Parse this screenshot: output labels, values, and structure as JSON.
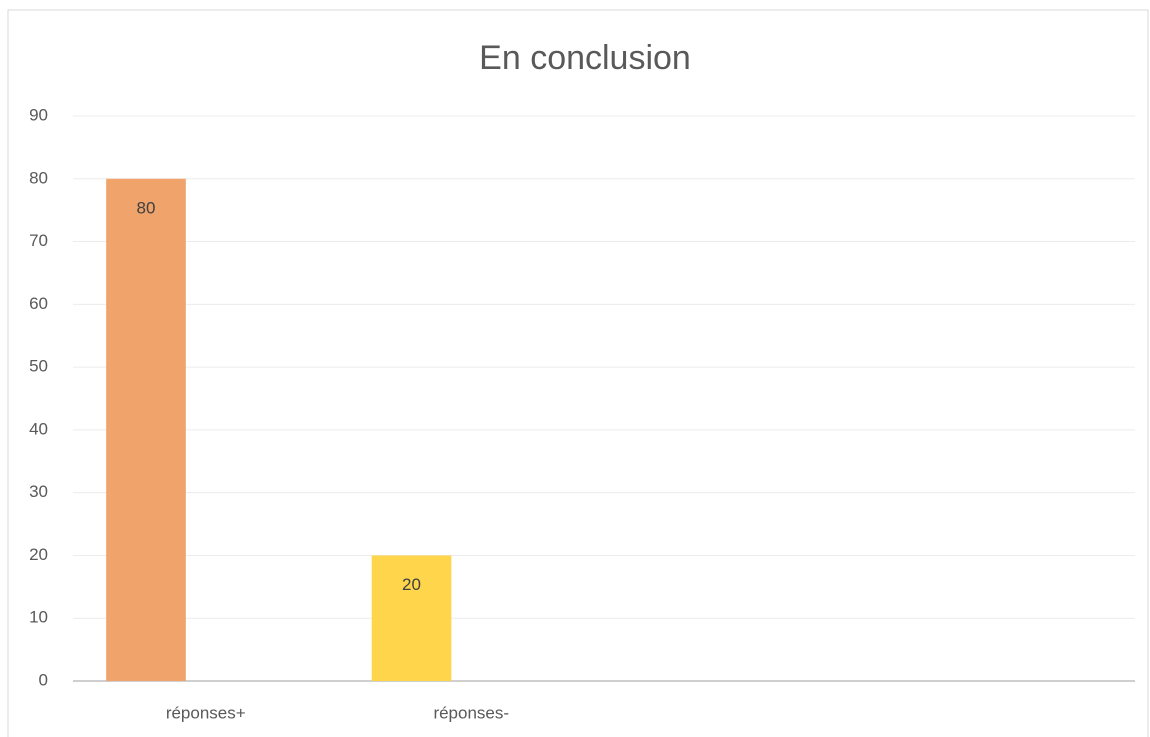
{
  "chart_data": {
    "type": "bar",
    "title": "En conclusion",
    "categories": [
      "réponses+",
      "réponses-",
      null,
      null
    ],
    "values": [
      80,
      20,
      null,
      null
    ],
    "colors": [
      "#f0a36b",
      "#ffd54c",
      null,
      null
    ],
    "ylim": [
      0,
      90
    ],
    "yticks": [
      0,
      10,
      20,
      30,
      40,
      50,
      60,
      70,
      80,
      90
    ],
    "grid": true
  }
}
